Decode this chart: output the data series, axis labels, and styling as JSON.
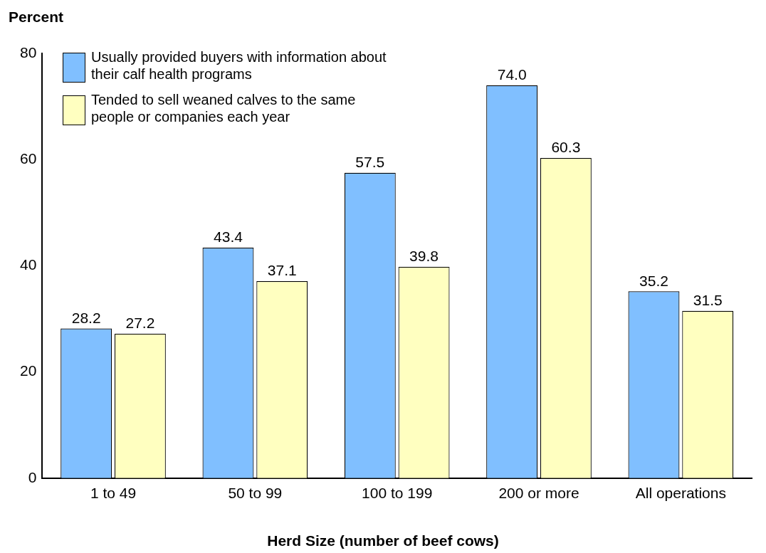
{
  "chart_data": {
    "type": "bar",
    "ylabel": "Percent",
    "xlabel": "Herd Size (number of beef cows)",
    "categories": [
      "1 to 49",
      "50 to 99",
      "100 to 199",
      "200 or more",
      "All operations"
    ],
    "series": [
      {
        "name": "Usually provided buyers with information about their calf health programs",
        "color": "#80bfff",
        "values": [
          28.2,
          43.4,
          57.5,
          74.0,
          35.2
        ],
        "value_labels": [
          "28.2",
          "43.4",
          "57.5",
          "74.0",
          "35.2"
        ]
      },
      {
        "name": "Tended to sell weaned calves to the same people or companies each year",
        "color": "#ffffc0",
        "values": [
          27.2,
          37.1,
          39.8,
          60.3,
          31.5
        ],
        "value_labels": [
          "27.2",
          "37.1",
          "39.8",
          "60.3",
          "31.5"
        ]
      }
    ],
    "ylim": [
      0,
      80
    ],
    "yticks": [
      0,
      20,
      40,
      60,
      80
    ],
    "grid": false,
    "legend": "top left"
  }
}
